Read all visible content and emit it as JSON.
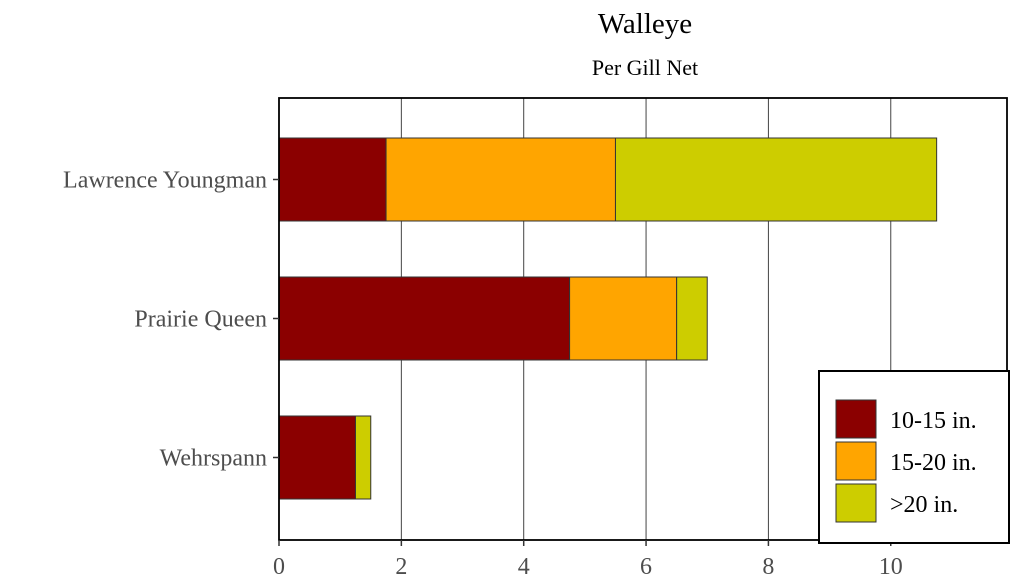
{
  "chart_data": {
    "type": "bar",
    "orientation": "horizontal",
    "stacked": true,
    "title": "Walleye",
    "subtitle": "Per Gill Net",
    "xlabel": "",
    "ylabel": "",
    "xlim": [
      0,
      11.9
    ],
    "x_ticks": [
      0,
      2,
      4,
      6,
      8,
      10
    ],
    "categories": [
      "Lawrence Youngman",
      "Prairie Queen",
      "Wehrspann"
    ],
    "series": [
      {
        "name": "10-15 in.",
        "color": "#8B0000",
        "values": [
          1.75,
          4.75,
          1.25
        ]
      },
      {
        "name": "15-20 in.",
        "color": "#FFA500",
        "values": [
          3.75,
          1.75,
          0.0
        ]
      },
      {
        "name": ">20 in.",
        "color": "#CDCD00",
        "values": [
          5.25,
          0.5,
          0.25
        ]
      }
    ],
    "grid": "vertical major",
    "legend_position": "bottom-right, inside plot"
  }
}
